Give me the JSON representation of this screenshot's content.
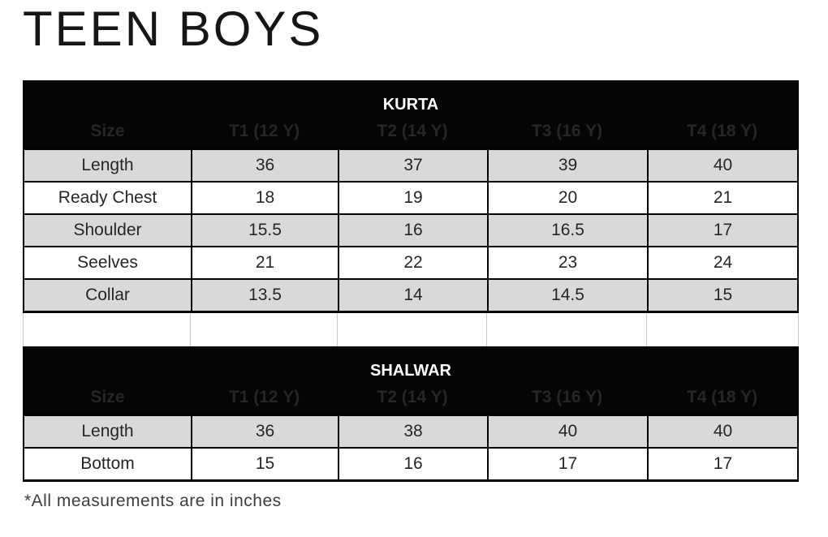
{
  "page": {
    "title": "TEEN BOYS",
    "footnote": "*All measurements are in inches"
  },
  "colors": {
    "header_bg": "#000000",
    "header_text": "#ffffff",
    "shaded_row_bg": "#d9d9d9",
    "plain_row_bg": "#ffffff",
    "border": "#000000"
  },
  "columns": [
    "Size",
    "T1 (12 Y)",
    "T2 (14 Y)",
    "T3 (16 Y)",
    "T4 (18 Y)"
  ],
  "kurta": {
    "title": "KURTA",
    "rows": [
      {
        "label": "Length",
        "values": [
          "36",
          "37",
          "39",
          "40"
        ]
      },
      {
        "label": "Ready Chest",
        "values": [
          "18",
          "19",
          "20",
          "21"
        ]
      },
      {
        "label": "Shoulder",
        "values": [
          "15.5",
          "16",
          "16.5",
          "17"
        ]
      },
      {
        "label": "Seelves",
        "values": [
          "21",
          "22",
          "23",
          "24"
        ]
      },
      {
        "label": "Collar",
        "values": [
          "13.5",
          "14",
          "14.5",
          "15"
        ]
      }
    ]
  },
  "shalwar": {
    "title": "SHALWAR",
    "rows": [
      {
        "label": "Length",
        "values": [
          "36",
          "38",
          "40",
          "40"
        ]
      },
      {
        "label": "Bottom",
        "values": [
          "15",
          "16",
          "17",
          "17"
        ]
      }
    ]
  }
}
